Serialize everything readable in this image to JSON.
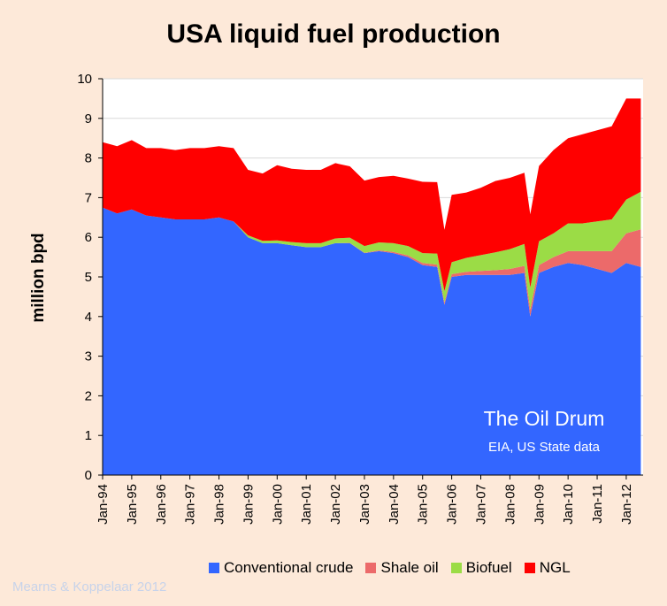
{
  "chart_data": {
    "type": "area",
    "stacked": true,
    "title": "USA liquid fuel production",
    "ylabel": "million bpd",
    "xlabel": "",
    "ylim": [
      0,
      10
    ],
    "yticks": [
      0,
      1,
      2,
      3,
      4,
      5,
      6,
      7,
      8,
      9,
      10
    ],
    "x_tick_labels": [
      "Jan-94",
      "Jan-95",
      "Jan-96",
      "Jan-97",
      "Jan-98",
      "Jan-99",
      "Jan-00",
      "Jan-01",
      "Jan-02",
      "Jan-03",
      "Jan-04",
      "Jan-05",
      "Jan-06",
      "Jan-07",
      "Jan-08",
      "Jan-09",
      "Jan-10",
      "Jan-11",
      "Jan-12"
    ],
    "x_range_years": [
      1994.0,
      2012.58
    ],
    "grid": "horizontal",
    "legend_position": "bottom",
    "x": [
      1994.0,
      1994.5,
      1995.0,
      1995.5,
      1996.0,
      1996.5,
      1997.0,
      1997.5,
      1998.0,
      1998.5,
      1999.0,
      1999.5,
      2000.0,
      2000.5,
      2001.0,
      2001.5,
      2002.0,
      2002.5,
      2003.0,
      2003.5,
      2004.0,
      2004.5,
      2005.0,
      2005.5,
      2005.75,
      2006.0,
      2006.5,
      2007.0,
      2007.5,
      2008.0,
      2008.5,
      2008.7,
      2009.0,
      2009.5,
      2010.0,
      2010.5,
      2011.0,
      2011.5,
      2012.0,
      2012.5
    ],
    "series": [
      {
        "name": "Conventional crude",
        "color": "#3366ff",
        "values": [
          6.75,
          6.6,
          6.7,
          6.55,
          6.5,
          6.45,
          6.45,
          6.45,
          6.5,
          6.4,
          6.0,
          5.85,
          5.85,
          5.8,
          5.75,
          5.75,
          5.85,
          5.85,
          5.6,
          5.65,
          5.6,
          5.5,
          5.3,
          5.25,
          4.3,
          5.0,
          5.05,
          5.05,
          5.05,
          5.05,
          5.1,
          4.0,
          5.1,
          5.25,
          5.35,
          5.3,
          5.2,
          5.1,
          5.35,
          5.25
        ]
      },
      {
        "name": "Shale oil",
        "color": "#ec6a6a",
        "values": [
          0,
          0,
          0,
          0,
          0,
          0,
          0,
          0,
          0,
          0,
          0,
          0,
          0,
          0,
          0,
          0,
          0,
          0.01,
          0.01,
          0.02,
          0.03,
          0.04,
          0.05,
          0.06,
          0.06,
          0.07,
          0.08,
          0.1,
          0.12,
          0.15,
          0.18,
          0.18,
          0.2,
          0.25,
          0.3,
          0.35,
          0.45,
          0.55,
          0.75,
          0.95
        ]
      },
      {
        "name": "Biofuel",
        "color": "#9bdc46",
        "values": [
          0,
          0,
          0,
          0,
          0,
          0,
          0,
          0,
          0,
          0,
          0.05,
          0.06,
          0.07,
          0.08,
          0.1,
          0.1,
          0.12,
          0.13,
          0.17,
          0.2,
          0.22,
          0.24,
          0.25,
          0.28,
          0.28,
          0.3,
          0.35,
          0.4,
          0.45,
          0.5,
          0.55,
          0.55,
          0.6,
          0.6,
          0.7,
          0.7,
          0.75,
          0.8,
          0.85,
          0.95
        ]
      },
      {
        "name": "NGL",
        "color": "#ff0000",
        "values": [
          1.65,
          1.7,
          1.75,
          1.7,
          1.75,
          1.75,
          1.8,
          1.8,
          1.8,
          1.85,
          1.65,
          1.7,
          1.9,
          1.85,
          1.85,
          1.85,
          1.9,
          1.8,
          1.65,
          1.65,
          1.7,
          1.7,
          1.8,
          1.8,
          1.55,
          1.7,
          1.65,
          1.7,
          1.8,
          1.8,
          1.8,
          1.85,
          1.9,
          2.1,
          2.15,
          2.25,
          2.3,
          2.35,
          2.55,
          2.35
        ]
      }
    ]
  },
  "page": {
    "watermark_title": "The Oil Drum",
    "watermark_sub": "EIA, US State data",
    "credit": "Mearns & Koppelaar 2012"
  }
}
